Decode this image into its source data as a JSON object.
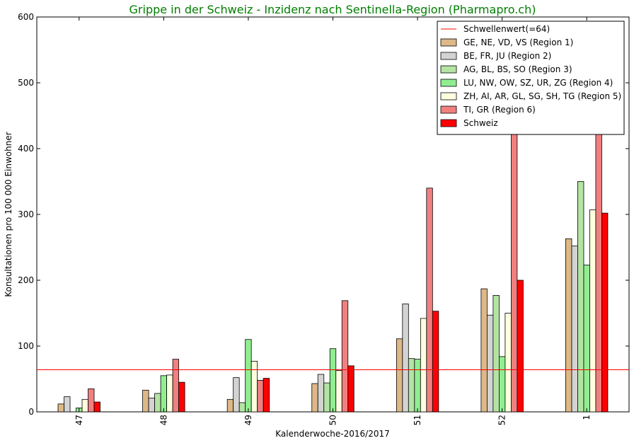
{
  "chart_data": {
    "type": "bar",
    "title": "Grippe in der Schweiz - Inzidenz nach Sentinella-Region (Pharmapro.ch)",
    "title_color": "#008000",
    "xlabel": "Kalenderwoche-2016/2017",
    "ylabel": "Konsultationen pro 100 000 Einwohner",
    "ylim": [
      0,
      600
    ],
    "yticks": [
      "0",
      "100",
      "200",
      "300",
      "400",
      "500",
      "600"
    ],
    "categories": [
      "47",
      "48",
      "49",
      "50",
      "51",
      "52",
      "1"
    ],
    "threshold": {
      "name": "Schwellenwert(=64)",
      "value": 64,
      "color": "#ff0000"
    },
    "series": [
      {
        "name": "GE, NE, VD, VS (Region 1)",
        "color": "#deb887",
        "values": [
          12,
          33,
          19,
          43,
          111,
          187,
          263
        ]
      },
      {
        "name": "BE, FR, JU (Region 2)",
        "color": "#d3d3d3",
        "values": [
          23,
          21,
          52,
          57,
          164,
          147,
          252
        ]
      },
      {
        "name": "AG, BL, BS, SO (Region 3)",
        "color": "#b4e4a4",
        "values": [
          0,
          28,
          14,
          44,
          81,
          177,
          350
        ]
      },
      {
        "name": "LU, NW, OW, SZ, UR, ZG (Region 4)",
        "color": "#90ee90",
        "values": [
          6,
          55,
          110,
          96,
          80,
          84,
          223
        ]
      },
      {
        "name": "ZH, AI, AR, GL, SG, SH, TG (Region 5)",
        "color": "#ffffe0",
        "values": [
          19,
          56,
          77,
          63,
          142,
          150,
          307
        ]
      },
      {
        "name": "TI, GR (Region 6)",
        "color": "#f08080",
        "values": [
          35,
          80,
          48,
          169,
          340,
          430,
          430
        ]
      },
      {
        "name": "Schweiz",
        "color": "#ff0000",
        "values": [
          15,
          45,
          51,
          70,
          153,
          200,
          302
        ]
      }
    ],
    "legend": "top-right",
    "grid": false
  }
}
